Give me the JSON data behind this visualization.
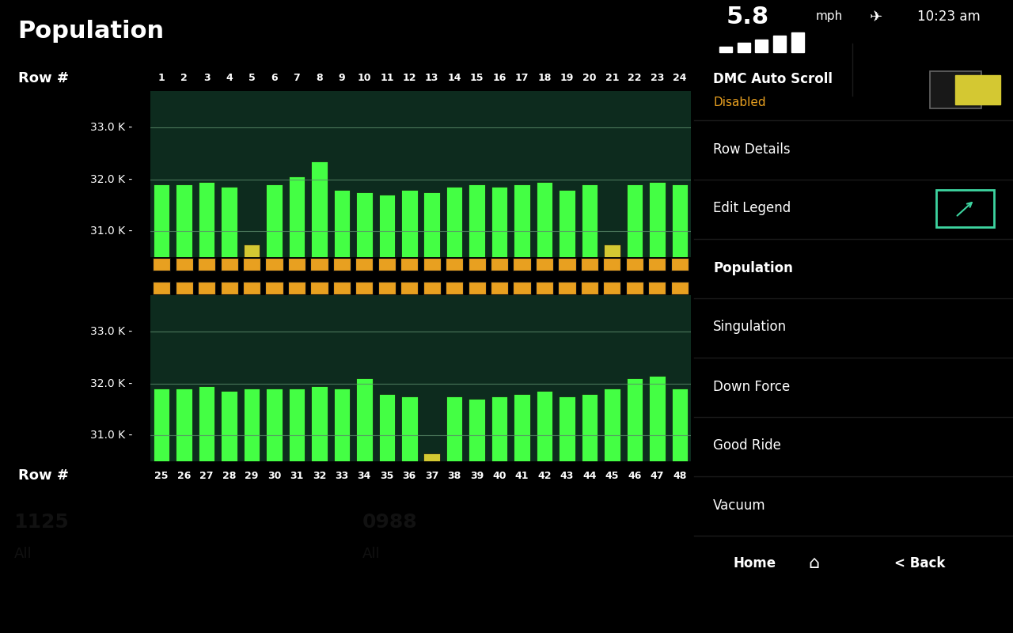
{
  "title": "Population",
  "panel_bg": "#1e3d2e",
  "chart_bg": "#0d2b1e",
  "label_bg": "#252525",
  "black_bg": "#000000",
  "outer_bg": "#1e3d2e",
  "orange_strip": "#e8a020",
  "green_bar": "#44ff44",
  "yellow_bar": "#d4c832",
  "grid_color": "#5a8a6a",
  "text_color": "#ffffff",
  "y_min": 30500,
  "y_max": 33700,
  "y_ticks": [
    31000,
    32000,
    33000
  ],
  "y_tick_labels": [
    "31.0 K -",
    "32.0 K -",
    "33.0 K -"
  ],
  "rows1": [
    1,
    2,
    3,
    4,
    5,
    6,
    7,
    8,
    9,
    10,
    11,
    12,
    13,
    14,
    15,
    16,
    17,
    18,
    19,
    20,
    21,
    22,
    23,
    24
  ],
  "rows2": [
    25,
    26,
    27,
    28,
    29,
    30,
    31,
    32,
    33,
    34,
    35,
    36,
    37,
    38,
    39,
    40,
    41,
    42,
    43,
    44,
    45,
    46,
    47,
    48
  ],
  "values1": [
    31900,
    31900,
    31950,
    31850,
    30750,
    31900,
    32050,
    32350,
    31800,
    31750,
    31700,
    31800,
    31750,
    31850,
    31900,
    31850,
    31900,
    31950,
    31800,
    31900,
    30750,
    31900,
    31950,
    31900
  ],
  "values2": [
    31900,
    31900,
    31950,
    31850,
    31900,
    31900,
    31900,
    31950,
    31900,
    32100,
    31800,
    31750,
    30650,
    31750,
    31700,
    31750,
    31800,
    31850,
    31750,
    31800,
    31900,
    32100,
    32150,
    31900
  ],
  "bar_colors1": [
    "#44ff44",
    "#44ff44",
    "#44ff44",
    "#44ff44",
    "#d4c832",
    "#44ff44",
    "#44ff44",
    "#44ff44",
    "#44ff44",
    "#44ff44",
    "#44ff44",
    "#44ff44",
    "#44ff44",
    "#44ff44",
    "#44ff44",
    "#44ff44",
    "#44ff44",
    "#44ff44",
    "#44ff44",
    "#44ff44",
    "#d4c832",
    "#44ff44",
    "#44ff44",
    "#44ff44"
  ],
  "bar_colors2": [
    "#44ff44",
    "#44ff44",
    "#44ff44",
    "#44ff44",
    "#44ff44",
    "#44ff44",
    "#44ff44",
    "#44ff44",
    "#44ff44",
    "#44ff44",
    "#44ff44",
    "#44ff44",
    "#d4c832",
    "#44ff44",
    "#44ff44",
    "#44ff44",
    "#44ff44",
    "#44ff44",
    "#44ff44",
    "#44ff44",
    "#44ff44",
    "#44ff44",
    "#44ff44",
    "#44ff44"
  ],
  "legend1_text": "1125",
  "legend1_sub": "All",
  "legend1_color": "#e8a020",
  "legend2_text": "0988",
  "legend2_sub": "All",
  "legend2_color": "#5bbfea",
  "sidebar_active_color": "#3dd4a0",
  "sidebar_bg": "#2e2e2e",
  "sidebar_text": "#ffffff",
  "sidebar_divider": "#1a1a1a",
  "home_back_bg": "#3a3a3a",
  "status_bg": "#000000"
}
